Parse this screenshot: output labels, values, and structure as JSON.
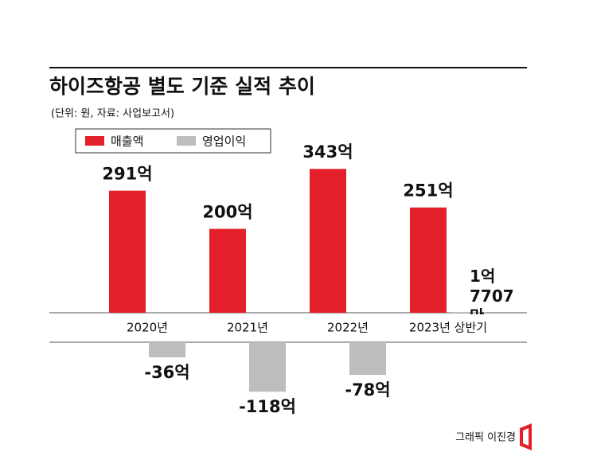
{
  "chart_data": {
    "type": "bar",
    "title": "하이즈항공 별도 기준 실적 추이",
    "subtitle": "(단위: 원, 자료: 사업보고서)",
    "credit": "그래픽 이진경",
    "categories": [
      "2020년",
      "2021년",
      "2022년",
      "2023년 상반기"
    ],
    "series": [
      {
        "name": "매출액",
        "color": "#e3202a",
        "values": [
          291,
          200,
          343,
          251
        ],
        "value_labels": [
          "291억",
          "200억",
          "343억",
          "251억"
        ]
      },
      {
        "name": "영업이익",
        "color": "#bdbdbd",
        "values": [
          -36,
          -118,
          -78,
          1.7707
        ],
        "value_labels": [
          "-36억",
          "-118억",
          "-78억",
          "1억 7707만"
        ]
      }
    ]
  }
}
